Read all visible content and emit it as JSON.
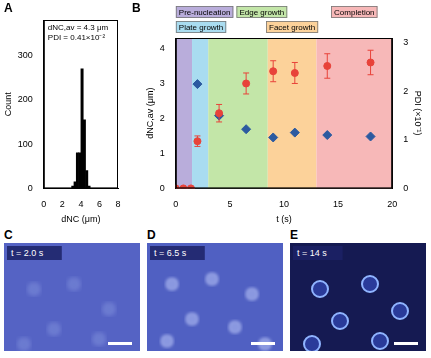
{
  "chart_data": [
    {
      "panel": "A",
      "type": "histogram",
      "x_label": "dNC (μm)",
      "y_label": "Count",
      "bins": [
        3,
        3.25,
        3.5,
        3.75,
        4,
        4.25,
        4.5,
        4.75,
        5
      ],
      "values": [
        5,
        15,
        80,
        80,
        270,
        155,
        40,
        5
      ],
      "color": "#000000",
      "xlim": [
        0,
        8
      ],
      "xticks": [
        0,
        2,
        4,
        6,
        8
      ],
      "ylim": [
        0,
        380
      ],
      "yticks": [
        0,
        100,
        200,
        300
      ],
      "grid": false,
      "annotations": [
        "dNC,av = 4.3 μm",
        "PDI = 0.41×10⁻²"
      ]
    },
    {
      "panel": "B",
      "type": "scatter",
      "x_label": "t (s)",
      "y_label": "dNC,av (μm)",
      "y2_label": "PDI (×10⁻¹)",
      "x": [
        0,
        0.7,
        1.4,
        2,
        4,
        6.5,
        9,
        11,
        14,
        18
      ],
      "series": [
        {
          "color": "#e8433a",
          "marker": "circle",
          "values": [
            0,
            0,
            0,
            1.35,
            2.15,
            3.0,
            3.35,
            3.3,
            3.5,
            3.6
          ],
          "errors": [
            null,
            null,
            null,
            0.15,
            0.25,
            0.3,
            0.3,
            0.3,
            0.35,
            0.35
          ]
        },
        {
          "color": "#2c5aa0",
          "marker": "diamond",
          "axis": "y2",
          "values": [
            null,
            null,
            null,
            2.15,
            1.5,
            1.22,
            1.05,
            1.15,
            1.1,
            1.07
          ]
        }
      ],
      "xlim": [
        0,
        20
      ],
      "xticks": [
        0,
        5,
        10,
        15,
        20
      ],
      "ylim": [
        0,
        4.3
      ],
      "yticks": [
        0,
        1,
        2,
        3,
        4
      ],
      "y2lim": [
        0,
        3.1
      ],
      "y2ticks": [
        0,
        1,
        2,
        3
      ],
      "grid": false,
      "regions": [
        {
          "label": "Pre-nucleation",
          "start": 0,
          "end": 1.5,
          "color": "#b9addb"
        },
        {
          "label": "Plate growth",
          "start": 1.5,
          "end": 3,
          "color": "#a9dcf0"
        },
        {
          "label": "Edge growth",
          "start": 3,
          "end": 8.5,
          "color": "#c3e6a8"
        },
        {
          "label": "Facet growth",
          "start": 8.5,
          "end": 13,
          "color": "#fcd29a"
        },
        {
          "label": "Completion",
          "start": 13,
          "end": 20,
          "color": "#f7b8b8"
        }
      ]
    }
  ],
  "images": [
    {
      "panel": "C",
      "label": "t = 2.0 s"
    },
    {
      "panel": "D",
      "label": "t = 6.5 s"
    },
    {
      "panel": "E",
      "label": "t = 14 s"
    }
  ]
}
